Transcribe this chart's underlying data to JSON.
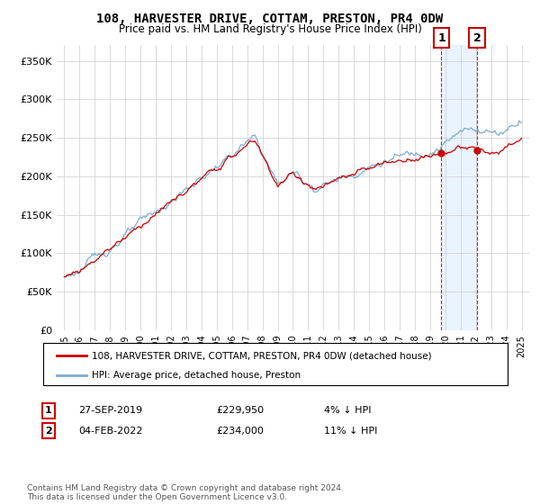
{
  "title": "108, HARVESTER DRIVE, COTTAM, PRESTON, PR4 0DW",
  "subtitle": "Price paid vs. HM Land Registry's House Price Index (HPI)",
  "legend_line1": "108, HARVESTER DRIVE, COTTAM, PRESTON, PR4 0DW (detached house)",
  "legend_line2": "HPI: Average price, detached house, Preston",
  "annotation1_date": "27-SEP-2019",
  "annotation1_price": "£229,950",
  "annotation1_hpi": "4% ↓ HPI",
  "annotation2_date": "04-FEB-2022",
  "annotation2_price": "£234,000",
  "annotation2_hpi": "11% ↓ HPI",
  "footnote": "Contains HM Land Registry data © Crown copyright and database right 2024.\nThis data is licensed under the Open Government Licence v3.0.",
  "sale1_year": 2019.74,
  "sale1_price": 229950,
  "sale2_year": 2022.09,
  "sale2_price": 234000,
  "hpi_color": "#7aadd4",
  "sale_color": "#cc0000",
  "dashed_color": "#cc0000",
  "shade_color": "#ddeeff",
  "ylim_min": 0,
  "ylim_max": 370000,
  "yticks": [
    0,
    50000,
    100000,
    150000,
    200000,
    250000,
    300000,
    350000
  ],
  "background_color": "#ffffff",
  "grid_color": "#cccccc"
}
